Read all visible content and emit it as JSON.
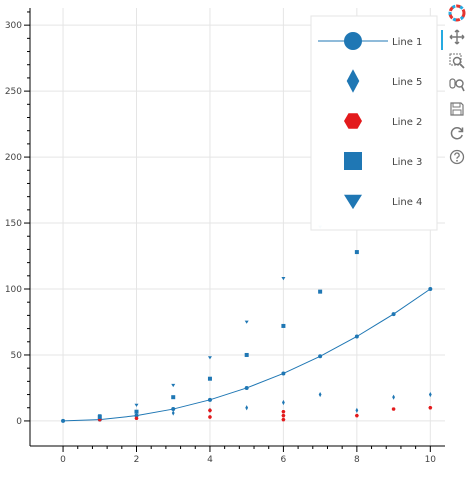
{
  "chart_data": {
    "type": "scatter",
    "xlim": [
      -0.9,
      10.4
    ],
    "ylim": [
      -19,
      313
    ],
    "x_ticks": [
      0,
      2,
      4,
      6,
      8,
      10
    ],
    "y_ticks": [
      0,
      50,
      100,
      150,
      200,
      250,
      300
    ],
    "grid": true,
    "legend_placement": "top-right",
    "series": [
      {
        "name": "Line 1",
        "marker": "circle",
        "color": "#1f77b4",
        "line": true,
        "x": [
          0,
          1,
          2,
          3,
          4,
          5,
          6,
          7,
          8,
          9,
          10
        ],
        "y": [
          0,
          1,
          4,
          9,
          16,
          25,
          36,
          49,
          64,
          81,
          100
        ]
      },
      {
        "name": "Line 5",
        "marker": "diamond",
        "color": "#1f77b4",
        "line": false,
        "x": [
          1,
          2,
          3,
          4,
          5,
          6,
          7,
          8,
          9,
          10
        ],
        "y": [
          2,
          4,
          6,
          8,
          10,
          14,
          20,
          8,
          18,
          20
        ]
      },
      {
        "name": "Line 2",
        "marker": "hex",
        "color": "#e31a1c",
        "line": false,
        "x": [
          1,
          2,
          4,
          4,
          6,
          6,
          6,
          8,
          9,
          10
        ],
        "y": [
          1,
          2,
          3,
          8,
          1,
          4,
          7,
          4,
          9,
          10
        ]
      },
      {
        "name": "Line 3",
        "marker": "square",
        "color": "#1f77b4",
        "line": false,
        "x": [
          1,
          2,
          3,
          4,
          5,
          6,
          7,
          8
        ],
        "y": [
          3,
          7,
          18,
          32,
          50,
          72,
          98,
          128
        ]
      },
      {
        "name": "Line 4",
        "marker": "triangle",
        "color": "#1f77b4",
        "line": false,
        "x": [
          1,
          2,
          3,
          4,
          5,
          6,
          7
        ],
        "y": [
          4,
          12,
          27,
          48,
          75,
          108,
          147
        ]
      }
    ]
  },
  "toolbar": {
    "tools": [
      "bokeh-logo-icon",
      "pan-icon",
      "box-zoom-icon",
      "wheel-zoom-icon",
      "save-icon",
      "reset-icon",
      "help-icon"
    ]
  }
}
